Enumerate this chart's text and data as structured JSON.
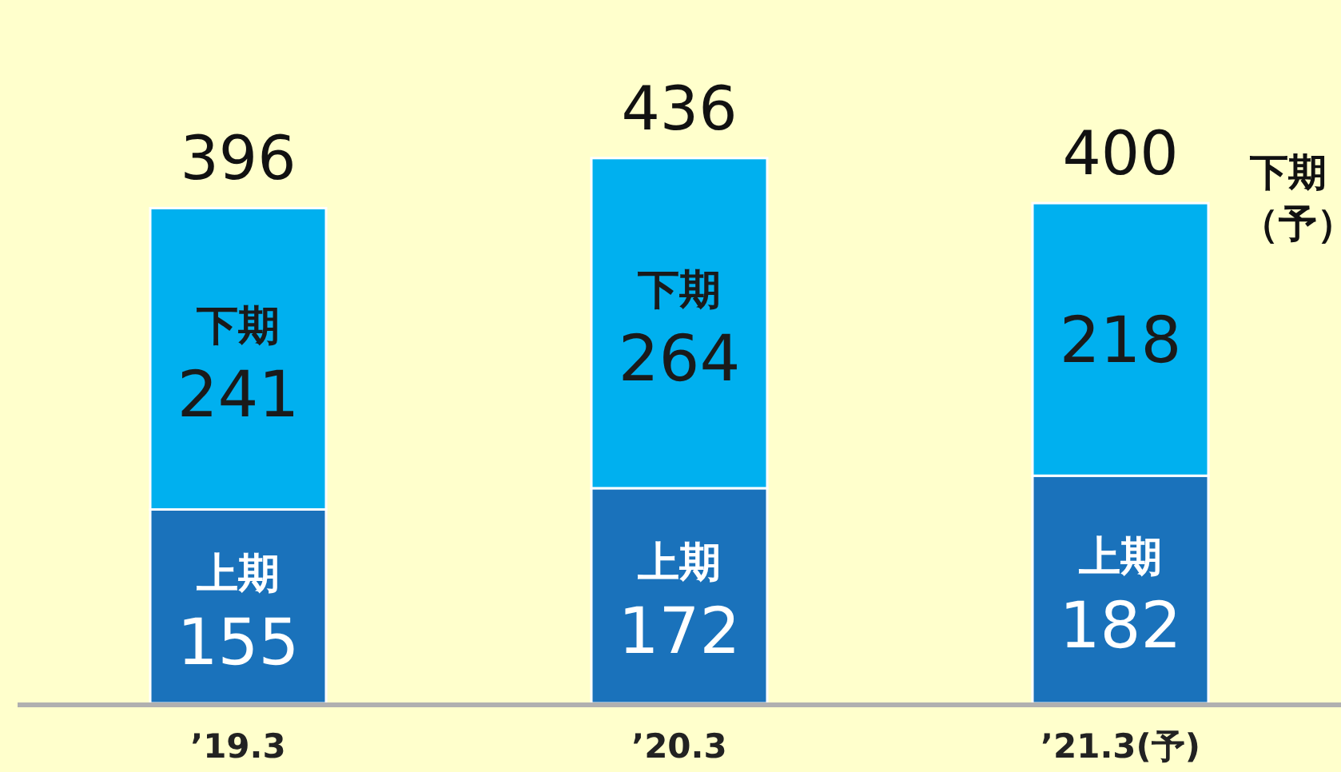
{
  "chart_data": {
    "type": "bar",
    "stacked": true,
    "relative": false,
    "data_labels": true,
    "categories": [
      "’19.3",
      "’20.3",
      "’21.3(予)"
    ],
    "series": [
      {
        "name": "上期",
        "color": "#1a72bb",
        "values": [
          155,
          172,
          182
        ]
      },
      {
        "name": "下期",
        "color": "#00b0ef",
        "values": [
          241,
          264,
          218
        ]
      }
    ],
    "totals": [
      "396",
      "436",
      "400"
    ],
    "annotations": [
      "下期（予）"
    ]
  }
}
